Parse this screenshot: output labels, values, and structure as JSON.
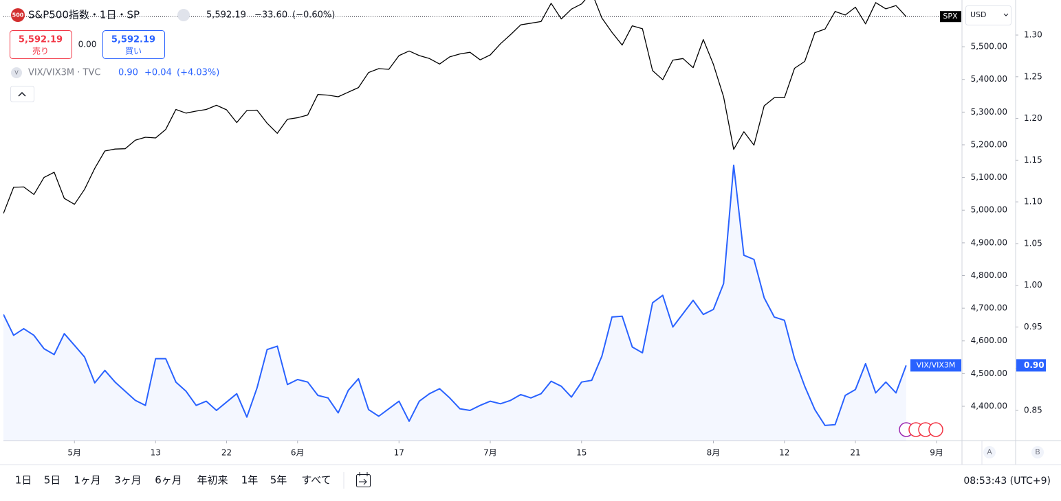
{
  "header": {
    "logo": "500",
    "title": "S&P500指数・1日・SP",
    "last": "5,592.19",
    "change": "−33.60",
    "change_pct": "(−0.60%)",
    "sell_price": "5,592.19",
    "sell_label": "売り",
    "spread": "0.00",
    "buy_price": "5,592.19",
    "buy_label": "買い"
  },
  "legend2": {
    "logo": "V",
    "title": "VIX/VIX3M · TVC",
    "last": "0.90",
    "change": "+0.04",
    "change_pct": "(+4.03%)"
  },
  "chart_data": {
    "type": "line",
    "series": [
      {
        "name": "SPX",
        "color": "#000000",
        "axis": "y",
        "values": [
          4990,
          5070,
          5071,
          5048,
          5100,
          5116,
          5036,
          5018,
          5064,
          5128,
          5181,
          5187,
          5188,
          5214,
          5223,
          5221,
          5247,
          5308,
          5297,
          5303,
          5308,
          5321,
          5307,
          5268,
          5305,
          5306,
          5266,
          5235,
          5278,
          5283,
          5291,
          5354,
          5352,
          5347,
          5361,
          5375,
          5421,
          5433,
          5431,
          5473,
          5487,
          5473,
          5464,
          5447,
          5469,
          5478,
          5483,
          5460,
          5475,
          5509,
          5537,
          5567,
          5572,
          5577,
          5633,
          5585,
          5615,
          5631,
          5667,
          5588,
          5544,
          5505,
          5564,
          5555,
          5427,
          5399,
          5459,
          5464,
          5436,
          5522,
          5446,
          5347,
          5186,
          5240,
          5199,
          5319,
          5344,
          5344,
          5434,
          5455,
          5543,
          5554,
          5608,
          5597,
          5621,
          5570,
          5635,
          5616,
          5626,
          5592.19
        ]
      },
      {
        "name": "VIX/VIX3M",
        "color": "#2962ff",
        "axis": "y2",
        "area": true,
        "last_label": "0.90",
        "values": [
          0.965,
          0.94,
          0.948,
          0.94,
          0.924,
          0.917,
          0.942,
          0.928,
          0.914,
          0.883,
          0.898,
          0.884,
          0.873,
          0.862,
          0.856,
          0.912,
          0.912,
          0.884,
          0.873,
          0.856,
          0.861,
          0.85,
          0.86,
          0.87,
          0.842,
          0.877,
          0.923,
          0.927,
          0.881,
          0.887,
          0.884,
          0.868,
          0.865,
          0.847,
          0.874,
          0.888,
          0.851,
          0.843,
          0.852,
          0.861,
          0.837,
          0.861,
          0.87,
          0.876,
          0.865,
          0.852,
          0.85,
          0.856,
          0.861,
          0.858,
          0.862,
          0.869,
          0.865,
          0.87,
          0.885,
          0.879,
          0.866,
          0.884,
          0.886,
          0.915,
          0.962,
          0.963,
          0.926,
          0.919,
          0.979,
          0.988,
          0.95,
          0.966,
          0.982,
          0.965,
          0.971,
          1.002,
          1.144,
          1.036,
          1.031,
          0.985,
          0.962,
          0.958,
          0.912,
          0.879,
          0.851,
          0.832,
          0.833,
          0.868,
          0.875,
          0.906,
          0.871,
          0.884,
          0.871,
          0.904
        ]
      }
    ],
    "xlim": [
      0,
      94.44
    ],
    "xticks": [
      {
        "value": 7,
        "label": "5月"
      },
      {
        "value": 15,
        "label": "13"
      },
      {
        "value": 22,
        "label": "22"
      },
      {
        "value": 29,
        "label": "6月"
      },
      {
        "value": 39,
        "label": "17"
      },
      {
        "value": 48,
        "label": "7月"
      },
      {
        "value": 57,
        "label": "15"
      },
      {
        "value": 70,
        "label": "8月"
      },
      {
        "value": 77,
        "label": "12"
      },
      {
        "value": 84,
        "label": "21"
      },
      {
        "value": 92,
        "label": "9月"
      }
    ],
    "ylim": [
      4295,
      5643
    ],
    "yticks": [
      {
        "value": 4400,
        "label": "4,400.00"
      },
      {
        "value": 4500,
        "label": "4,500.00"
      },
      {
        "value": 4600,
        "label": "4,600.00"
      },
      {
        "value": 4700,
        "label": "4,700.00"
      },
      {
        "value": 4800,
        "label": "4,800.00"
      },
      {
        "value": 4900,
        "label": "4,900.00"
      },
      {
        "value": 5000,
        "label": "5,000.00"
      },
      {
        "value": 5100,
        "label": "5,100.00"
      },
      {
        "value": 5200,
        "label": "5,200.00"
      },
      {
        "value": 5300,
        "label": "5,300.00"
      },
      {
        "value": 5400,
        "label": "5,400.00"
      },
      {
        "value": 5500,
        "label": "5,500.00"
      }
    ],
    "y2lim": [
      0.8138,
      1.342
    ],
    "y2ticks": [
      0.85,
      {
        "value": 0.9,
        "label": "0.90"
      },
      {
        "value": 0.95,
        "label": "0.95"
      },
      {
        "value": 1.0,
        "label": "1.00"
      },
      {
        "value": 1.05,
        "label": "1.05"
      },
      {
        "value": 1.1,
        "label": "1.10"
      },
      {
        "value": 1.15,
        "label": "1.15"
      },
      {
        "value": 1.2,
        "label": "1.20"
      },
      {
        "value": 1.25,
        "label": "1.25"
      },
      {
        "value": 1.3,
        "label": "1.30"
      }
    ],
    "currency": "USD",
    "scale_buttons": [
      "A",
      "B"
    ]
  },
  "toolbar": {
    "ranges": [
      "1日",
      "5日",
      "1ヶ月",
      "3ヶ月",
      "6ヶ月",
      "年初来",
      "1年",
      "5年",
      "すべて"
    ],
    "clock": "08:53:43 (UTC+9)"
  }
}
